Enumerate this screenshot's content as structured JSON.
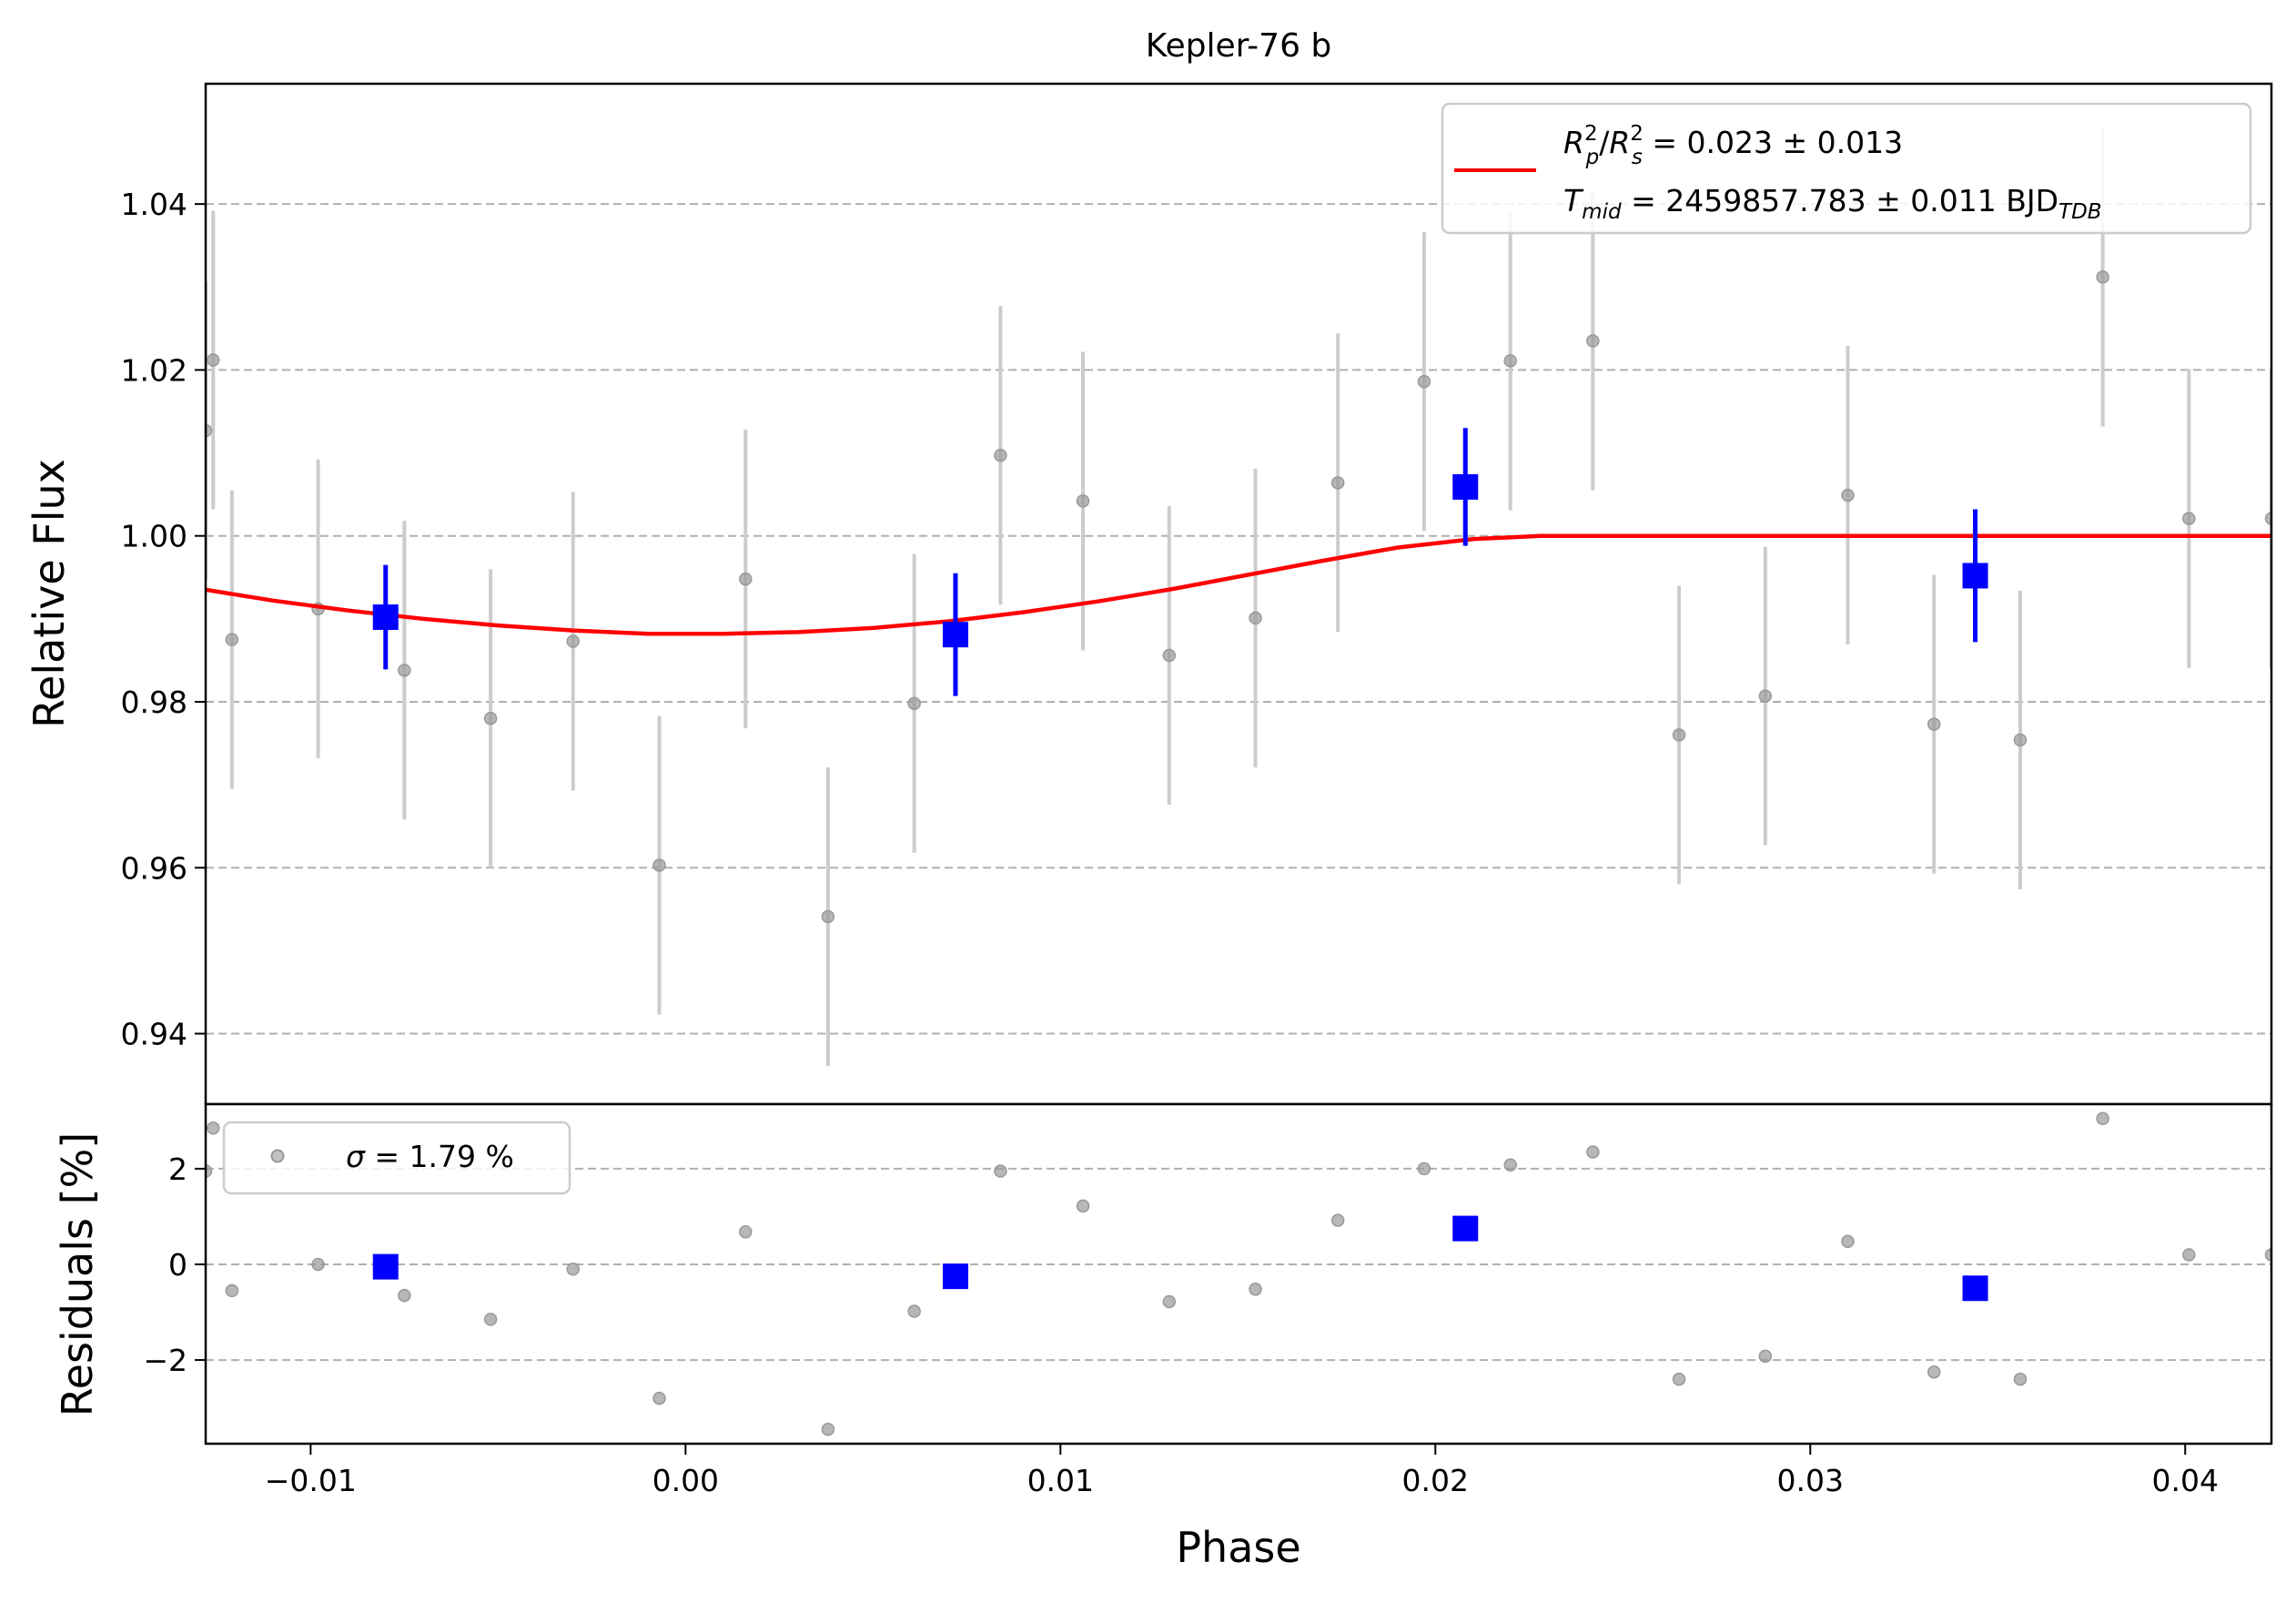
{
  "chart_data": [
    {
      "type": "scatter",
      "title": "Kepler-76 b",
      "xlabel": "",
      "ylabel": "Relative Flux",
      "xlim": [
        -0.0128,
        0.0423
      ],
      "ylim": [
        0.9315,
        1.0545
      ],
      "grid": "horizontal dashed",
      "y_ticks": [
        0.94,
        0.96,
        0.98,
        1.0,
        1.02,
        1.04
      ],
      "y_tick_labels": [
        "0.94",
        "0.96",
        "0.98",
        "1.00",
        "1.02",
        "1.04"
      ],
      "legend": {
        "placement": "top-right",
        "line1": {
          "lhs_r": "R",
          "lhs_p": "p",
          "lhs_s": "s",
          "sup": "2",
          "text": " = 0.023 ± 0.013"
        },
        "line2": {
          "lhs": "T",
          "lhs_sub": "mid",
          "text": " = 2459857.783 ± 0.011 BJD",
          "unit_sub": "TDB"
        }
      },
      "series": [
        {
          "kind": "data",
          "color": "#999999",
          "errcolor": "#cccccc",
          "x": [
            -0.0128,
            -0.0126,
            -0.0121,
            -0.0098,
            -0.0075,
            -0.0052,
            -0.003,
            -0.0007,
            0.0016,
            0.0038,
            0.0061,
            0.0084,
            0.0106,
            0.0129,
            0.0152,
            0.0174,
            0.0197,
            0.022,
            0.0242,
            0.0265,
            0.0288,
            0.031,
            0.0333,
            0.0356,
            0.0378,
            0.0401,
            0.0423
          ],
          "y": [
            1.0127,
            1.0212,
            0.9875,
            0.9912,
            0.9838,
            0.978,
            0.9873,
            0.9603,
            0.9948,
            0.9541,
            0.9798,
            1.0097,
            1.0042,
            0.9856,
            0.9901,
            1.0064,
            1.0186,
            1.0211,
            1.0235,
            0.976,
            0.9807,
            1.0049,
            0.9773,
            0.9754,
            1.0312,
            1.0021,
            1.0021
          ],
          "yerr": [
            0.018,
            0.018,
            0.018,
            0.018,
            0.018,
            0.018,
            0.018,
            0.018,
            0.018,
            0.018,
            0.018,
            0.018,
            0.018,
            0.018,
            0.018,
            0.018,
            0.018,
            0.018,
            0.018,
            0.018,
            0.018,
            0.018,
            0.018,
            0.018,
            0.018,
            0.018,
            0.018
          ]
        },
        {
          "kind": "binned",
          "color": "#0000ff",
          "x": [
            -0.008,
            0.0072,
            0.0208,
            0.0344
          ],
          "y": [
            0.9902,
            0.9881,
            1.0059,
            0.9952
          ],
          "yerr": [
            0.0063,
            0.0074,
            0.0071,
            0.008
          ]
        },
        {
          "kind": "model",
          "color": "#ff0000",
          "x": [
            -0.0128,
            -0.011,
            -0.009,
            -0.007,
            -0.005,
            -0.003,
            -0.001,
            0.0,
            0.001,
            0.003,
            0.005,
            0.007,
            0.009,
            0.011,
            0.013,
            0.015,
            0.017,
            0.019,
            0.021,
            0.0228,
            0.025,
            0.03,
            0.035,
            0.04,
            0.0423
          ],
          "y": [
            0.9935,
            0.9922,
            0.991,
            0.99,
            0.9892,
            0.9886,
            0.9882,
            0.9882,
            0.9882,
            0.9884,
            0.9889,
            0.9897,
            0.9908,
            0.9921,
            0.9936,
            0.9953,
            0.997,
            0.9986,
            0.9996,
            1.0,
            1.0,
            1.0,
            1.0,
            1.0,
            1.0
          ]
        }
      ]
    },
    {
      "type": "scatter",
      "xlabel": "Phase",
      "ylabel": "Residuals [%]",
      "xlim": [
        -0.0128,
        0.0423
      ],
      "ylim": [
        -3.75,
        3.35
      ],
      "grid": "horizontal dashed",
      "x_ticks": [
        -0.01,
        0.0,
        0.01,
        0.02,
        0.03,
        0.04
      ],
      "x_tick_labels": [
        "−0.01",
        "0.00",
        "0.01",
        "0.02",
        "0.03",
        "0.04"
      ],
      "y_ticks": [
        -2,
        0,
        2
      ],
      "y_tick_labels": [
        "−2",
        "0",
        "2"
      ],
      "legend": {
        "placement": "top-left",
        "sigma": "σ",
        "text": " = 1.79 %"
      },
      "series": [
        {
          "kind": "data",
          "color": "#999999",
          "x": [
            -0.0128,
            -0.0126,
            -0.0121,
            -0.0098,
            -0.0075,
            -0.0052,
            -0.003,
            -0.0007,
            0.0016,
            0.0038,
            0.0061,
            0.0084,
            0.0106,
            0.0129,
            0.0152,
            0.0174,
            0.0197,
            0.022,
            0.0242,
            0.0265,
            0.0288,
            0.031,
            0.0333,
            0.0356,
            0.0378,
            0.0401,
            0.0423
          ],
          "y": [
            1.95,
            2.85,
            -0.55,
            0.0,
            -0.65,
            -1.15,
            -0.1,
            -2.8,
            0.68,
            -3.45,
            -0.98,
            1.95,
            1.22,
            -0.78,
            -0.52,
            0.92,
            2.0,
            2.08,
            2.35,
            -2.4,
            -1.92,
            0.48,
            -2.25,
            -2.4,
            3.05,
            0.2,
            0.2
          ]
        },
        {
          "kind": "binned",
          "color": "#0000ff",
          "x": [
            -0.008,
            0.0072,
            0.0208,
            0.0344
          ],
          "y": [
            -0.05,
            -0.25,
            0.75,
            -0.5
          ]
        }
      ]
    }
  ]
}
